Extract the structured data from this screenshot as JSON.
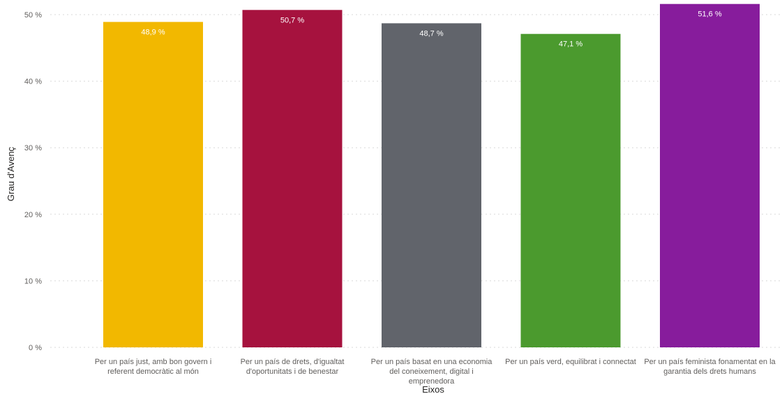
{
  "chart_data": {
    "type": "bar",
    "xlabel": "Eixos",
    "ylabel": "Grau d'Avenç",
    "ylim": [
      0,
      52
    ],
    "yticks": [
      0,
      10,
      20,
      30,
      40,
      50
    ],
    "ytick_labels": [
      "0 %",
      "10 %",
      "20 %",
      "30 %",
      "40 %",
      "50 %"
    ],
    "grid": true,
    "categories": [
      [
        "Per un país just, amb bon govern i",
        "referent democràtic al món"
      ],
      [
        "Per un país de drets, d'igualtat",
        "d'oportunitats i de benestar"
      ],
      [
        "Per un país basat en una economia",
        "del coneixement, digital i",
        "emprenedora"
      ],
      [
        "Per un país verd, equilibrat i connectat"
      ],
      [
        "Per un país feminista fonamentat en la",
        "garantia dels drets humans"
      ]
    ],
    "values": [
      48.9,
      50.7,
      48.7,
      47.1,
      51.6
    ],
    "data_labels": [
      "48,9 %",
      "50,7 %",
      "48,7 %",
      "47,1 %",
      "51,6 %"
    ],
    "colors": [
      "#F2B800",
      "#A6123E",
      "#61646B",
      "#4B9A2E",
      "#871C9C"
    ]
  }
}
